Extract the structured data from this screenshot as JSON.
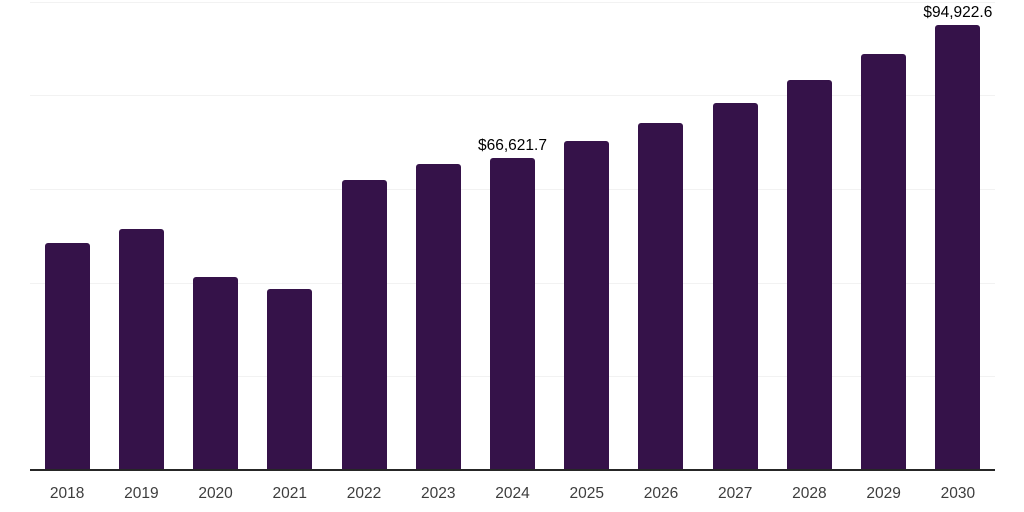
{
  "chart_data": {
    "type": "bar",
    "categories": [
      "2018",
      "2019",
      "2020",
      "2021",
      "2022",
      "2023",
      "2024",
      "2025",
      "2026",
      "2027",
      "2028",
      "2029",
      "2030"
    ],
    "values": [
      48400,
      51400,
      41300,
      38600,
      61800,
      65300,
      66621.7,
      70200,
      74000,
      78400,
      83200,
      88800,
      94922.6
    ],
    "data_labels": {
      "2024": "$66,621.7",
      "2030": "$94,922.6"
    },
    "ylim": [
      0,
      100000
    ],
    "grid_step": 20000,
    "grid": "horizontal",
    "legend": "none",
    "y_axis_tick_labels": "none",
    "colors": {
      "bar": "#351249",
      "axis_line": "#262626",
      "gridline": "#f2f2f2",
      "tick_label": "#3d3d3d",
      "data_label": "#000000",
      "background": "#ffffff"
    }
  }
}
